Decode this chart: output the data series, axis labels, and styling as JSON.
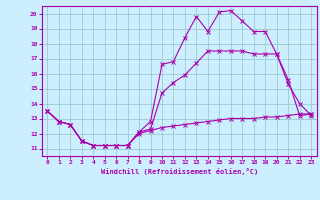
{
  "xlabel": "Windchill (Refroidissement éolien,°C)",
  "bg_color": "#cceeff",
  "line_color": "#aa00aa",
  "grid_color": "#99cccc",
  "xlim": [
    -0.5,
    23.5
  ],
  "ylim": [
    10.5,
    20.5
  ],
  "xticks": [
    0,
    1,
    2,
    3,
    4,
    5,
    6,
    7,
    8,
    9,
    10,
    11,
    12,
    13,
    14,
    15,
    16,
    17,
    18,
    19,
    20,
    21,
    22,
    23
  ],
  "yticks": [
    11,
    12,
    13,
    14,
    15,
    16,
    17,
    18,
    19,
    20
  ],
  "series1_x": [
    0,
    1,
    2,
    3,
    4,
    5,
    6,
    7,
    8,
    9,
    10,
    11,
    12,
    13,
    14,
    15,
    16,
    17,
    18,
    19,
    20,
    21,
    22,
    23
  ],
  "series1_y": [
    13.5,
    12.8,
    12.6,
    11.5,
    11.2,
    11.2,
    11.2,
    11.2,
    12.1,
    12.8,
    16.6,
    16.8,
    18.4,
    19.8,
    18.8,
    20.1,
    20.2,
    19.5,
    18.8,
    18.8,
    17.3,
    15.6,
    13.2,
    13.3
  ],
  "series2_x": [
    0,
    1,
    2,
    3,
    4,
    5,
    6,
    7,
    8,
    9,
    10,
    11,
    12,
    13,
    14,
    15,
    16,
    17,
    18,
    19,
    20,
    21,
    22,
    23
  ],
  "series2_y": [
    13.5,
    12.8,
    12.6,
    11.5,
    11.2,
    11.2,
    11.2,
    11.2,
    12.1,
    12.3,
    14.7,
    15.4,
    15.9,
    16.7,
    17.5,
    17.5,
    17.5,
    17.5,
    17.3,
    17.3,
    17.3,
    15.3,
    14.0,
    13.2
  ],
  "series3_x": [
    0,
    1,
    2,
    3,
    4,
    5,
    6,
    7,
    8,
    9,
    10,
    11,
    12,
    13,
    14,
    15,
    16,
    17,
    18,
    19,
    20,
    21,
    22,
    23
  ],
  "series3_y": [
    13.5,
    12.8,
    12.6,
    11.5,
    11.2,
    11.2,
    11.2,
    11.2,
    12.0,
    12.2,
    12.4,
    12.5,
    12.6,
    12.7,
    12.8,
    12.9,
    13.0,
    13.0,
    13.0,
    13.1,
    13.1,
    13.2,
    13.3,
    13.3
  ]
}
